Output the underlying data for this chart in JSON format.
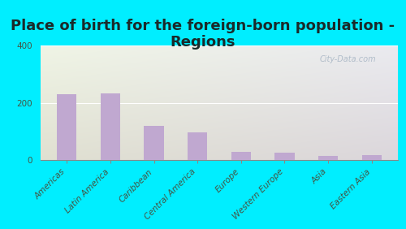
{
  "title": "Place of birth for the foreign-born population -\nRegions",
  "categories": [
    "Americas",
    "Latin America",
    "Caribbean",
    "Central America",
    "Europe",
    "Western Europe",
    "Asia",
    "Eastern Asia"
  ],
  "values": [
    232,
    234,
    120,
    97,
    30,
    28,
    15,
    18
  ],
  "bar_color": "#c0a8d0",
  "background_outer": "#00eeff",
  "ylim": [
    0,
    400
  ],
  "yticks": [
    0,
    200,
    400
  ],
  "title_fontsize": 13,
  "tick_fontsize": 7.5,
  "title_color": "#1a2a2a",
  "watermark": "City-Data.com"
}
